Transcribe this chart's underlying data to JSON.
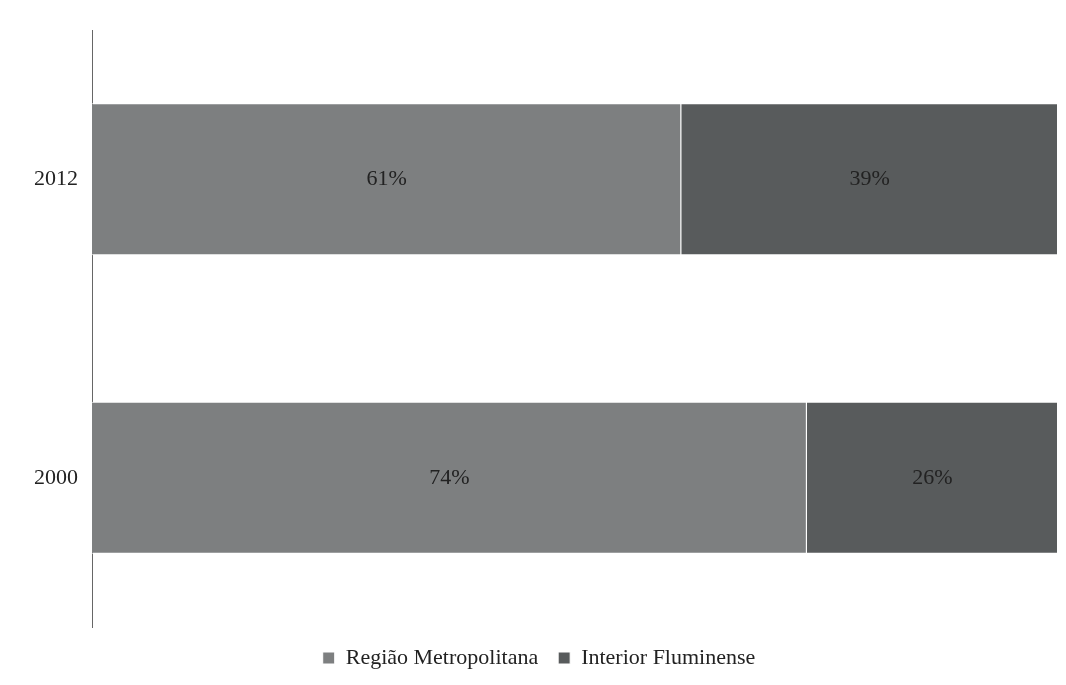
{
  "chart_data": {
    "type": "bar",
    "orientation": "horizontal",
    "stacked": true,
    "categories": [
      "2012",
      "2000"
    ],
    "xlim": [
      0,
      100
    ],
    "tick_labels": "y",
    "grid": false,
    "legend": "bottom",
    "series": [
      {
        "name": "Região Metropolitana",
        "color": "#7d7f80",
        "values": [
          61,
          74
        ],
        "value_labels": [
          "61%",
          "74%"
        ]
      },
      {
        "name": "Interior Fluminense",
        "color": "#585b5c",
        "values": [
          39,
          26
        ],
        "value_labels": [
          "39%",
          "26%"
        ]
      }
    ]
  }
}
